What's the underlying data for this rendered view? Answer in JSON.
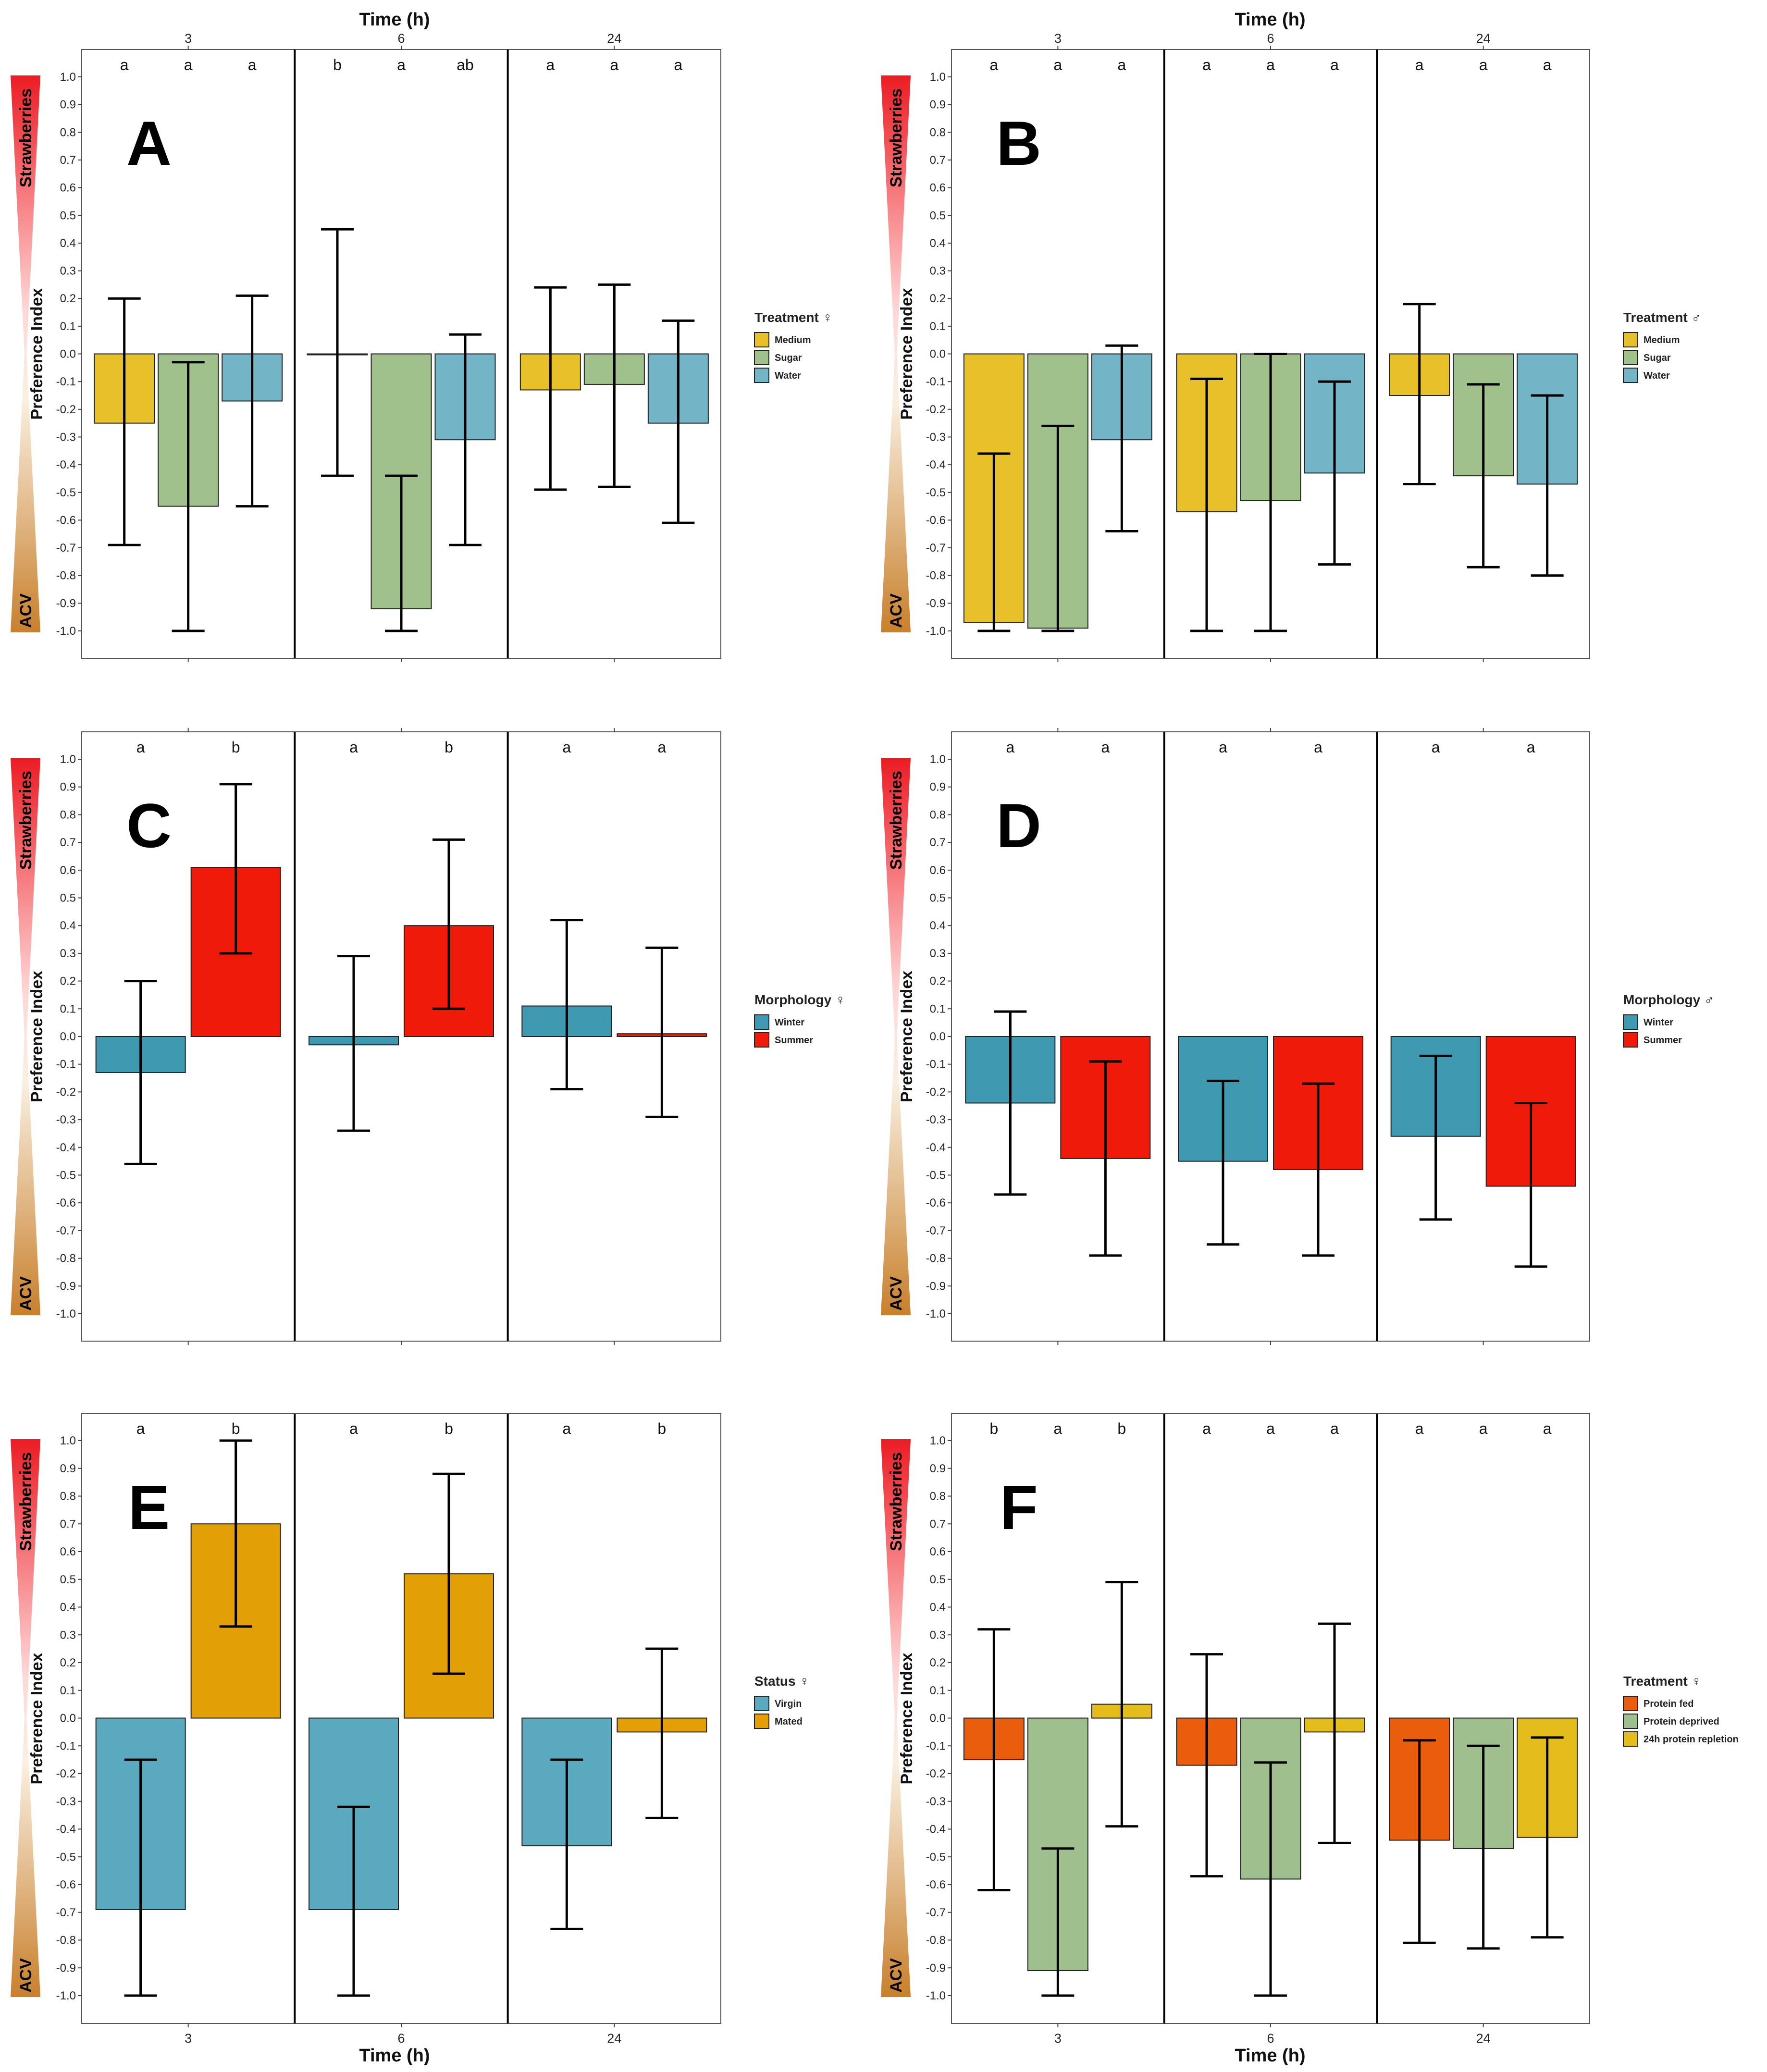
{
  "figure": {
    "time_axis_title": "Time (h)",
    "y_axis_title": "Preference Index",
    "gradient_top_label": "Strawberries",
    "gradient_bottom_label": "ACV",
    "y_ticks": [
      "1.0",
      "0.9",
      "0.8",
      "0.7",
      "0.6",
      "0.5",
      "0.4",
      "0.3",
      "0.2",
      "0.1",
      "0.0",
      "-0.1",
      "-0.2",
      "-0.3",
      "-0.4",
      "-0.5",
      "-0.6",
      "-0.7",
      "-0.8",
      "-0.9",
      "-1.0"
    ],
    "time_ticks": [
      "3",
      "6",
      "24"
    ]
  },
  "colors": {
    "gradient_top": "#ec1c24",
    "gradient_bottom": "#c8802c",
    "Medium": "#e8c12a",
    "Sugar": "#a0c08c",
    "Water": "#73b5c6",
    "Winter": "#3e99b1",
    "Summer": "#ef1a0a",
    "Virgin": "#5aa9be",
    "Mated": "#e3a006",
    "Protein fed": "#ea5d0c",
    "Protein deprived": "#9fc08e",
    "24h protein repletion": "#e4bd1d"
  },
  "chart_data": [
    {
      "panel": "A",
      "type": "bar",
      "ylim": [
        -1.0,
        1.0
      ],
      "xlabel": "Time (h)",
      "ylabel": "Preference Index",
      "categories": [
        "3",
        "6",
        "24"
      ],
      "legend": {
        "title": "Treatment ♀",
        "entries": [
          "Medium",
          "Sugar",
          "Water"
        ]
      },
      "series": [
        {
          "name": "Medium",
          "values": [
            -0.25,
            0.0,
            -0.13
          ],
          "err_low": [
            -0.69,
            -0.44,
            -0.49
          ],
          "err_high": [
            0.2,
            0.45,
            0.24
          ]
        },
        {
          "name": "Sugar",
          "values": [
            -0.55,
            -0.92,
            -0.11
          ],
          "err_low": [
            -1.0,
            -1.0,
            -0.48
          ],
          "err_high": [
            -0.03,
            -0.44,
            0.25
          ]
        },
        {
          "name": "Water",
          "values": [
            -0.17,
            -0.31,
            -0.25
          ],
          "err_low": [
            -0.55,
            -0.69,
            -0.61
          ],
          "err_high": [
            0.21,
            0.07,
            0.12
          ]
        }
      ],
      "letters": [
        [
          "a",
          "a",
          "a"
        ],
        [
          "b",
          "a",
          "ab"
        ],
        [
          "a",
          "a",
          "a"
        ]
      ]
    },
    {
      "panel": "B",
      "type": "bar",
      "ylim": [
        -1.0,
        1.0
      ],
      "xlabel": "Time (h)",
      "ylabel": "Preference Index",
      "categories": [
        "3",
        "6",
        "24"
      ],
      "legend": {
        "title": "Treatment ♂",
        "entries": [
          "Medium",
          "Sugar",
          "Water"
        ]
      },
      "series": [
        {
          "name": "Medium",
          "values": [
            -0.97,
            -0.57,
            -0.15
          ],
          "err_low": [
            -1.0,
            -1.0,
            -0.47
          ],
          "err_high": [
            -0.36,
            -0.09,
            0.18
          ]
        },
        {
          "name": "Sugar",
          "values": [
            -0.99,
            -0.53,
            -0.44
          ],
          "err_low": [
            -1.0,
            -1.0,
            -0.77
          ],
          "err_high": [
            -0.26,
            0.0,
            -0.11
          ]
        },
        {
          "name": "Water",
          "values": [
            -0.31,
            -0.43,
            -0.47
          ],
          "err_low": [
            -0.64,
            -0.76,
            -0.8
          ],
          "err_high": [
            0.03,
            -0.1,
            -0.15
          ]
        }
      ],
      "letters": [
        [
          "a",
          "a",
          "a"
        ],
        [
          "a",
          "a",
          "a"
        ],
        [
          "a",
          "a",
          "a"
        ]
      ]
    },
    {
      "panel": "C",
      "type": "bar",
      "ylim": [
        -1.0,
        1.0
      ],
      "xlabel": "Time (h)",
      "ylabel": "Preference Index",
      "categories": [
        "3",
        "6",
        "24"
      ],
      "legend": {
        "title": "Morphology ♀",
        "entries": [
          "Winter",
          "Summer"
        ]
      },
      "series": [
        {
          "name": "Winter",
          "values": [
            -0.13,
            -0.03,
            0.11
          ],
          "err_low": [
            -0.46,
            -0.34,
            -0.19
          ],
          "err_high": [
            0.2,
            0.29,
            0.42
          ]
        },
        {
          "name": "Summer",
          "values": [
            0.61,
            0.4,
            0.01
          ],
          "err_low": [
            0.3,
            0.1,
            -0.29
          ],
          "err_high": [
            0.91,
            0.71,
            0.32
          ]
        }
      ],
      "letters": [
        [
          "a",
          "b"
        ],
        [
          "a",
          "b"
        ],
        [
          "a",
          "a"
        ]
      ]
    },
    {
      "panel": "D",
      "type": "bar",
      "ylim": [
        -1.0,
        1.0
      ],
      "xlabel": "Time (h)",
      "ylabel": "Preference Index",
      "categories": [
        "3",
        "6",
        "24"
      ],
      "legend": {
        "title": "Morphology ♂",
        "entries": [
          "Winter",
          "Summer"
        ]
      },
      "series": [
        {
          "name": "Winter",
          "values": [
            -0.24,
            -0.45,
            -0.36
          ],
          "err_low": [
            -0.57,
            -0.75,
            -0.66
          ],
          "err_high": [
            0.09,
            -0.16,
            -0.07
          ]
        },
        {
          "name": "Summer",
          "values": [
            -0.44,
            -0.48,
            -0.54
          ],
          "err_low": [
            -0.79,
            -0.79,
            -0.83
          ],
          "err_high": [
            -0.09,
            -0.17,
            -0.24
          ]
        }
      ],
      "letters": [
        [
          "a",
          "a"
        ],
        [
          "a",
          "a"
        ],
        [
          "a",
          "a"
        ]
      ]
    },
    {
      "panel": "E",
      "type": "bar",
      "ylim": [
        -1.0,
        1.0
      ],
      "xlabel": "Time (h)",
      "ylabel": "Preference Index",
      "categories": [
        "3",
        "6",
        "24"
      ],
      "legend": {
        "title": "Status ♀",
        "entries": [
          "Virgin",
          "Mated"
        ]
      },
      "series": [
        {
          "name": "Virgin",
          "values": [
            -0.69,
            -0.69,
            -0.46
          ],
          "err_low": [
            -1.0,
            -1.0,
            -0.76
          ],
          "err_high": [
            -0.15,
            -0.32,
            -0.15
          ]
        },
        {
          "name": "Mated",
          "values": [
            0.7,
            0.52,
            -0.05
          ],
          "err_low": [
            0.33,
            0.16,
            -0.36
          ],
          "err_high": [
            1.0,
            0.88,
            0.25
          ]
        }
      ],
      "letters": [
        [
          "a",
          "b"
        ],
        [
          "a",
          "b"
        ],
        [
          "a",
          "b"
        ]
      ]
    },
    {
      "panel": "F",
      "type": "bar",
      "ylim": [
        -1.0,
        1.0
      ],
      "xlabel": "Time (h)",
      "ylabel": "Preference Index",
      "categories": [
        "3",
        "6",
        "24"
      ],
      "legend": {
        "title": "Treatment ♀",
        "entries": [
          "Protein fed",
          "Protein deprived",
          "24h protein repletion"
        ]
      },
      "series": [
        {
          "name": "Protein fed",
          "values": [
            -0.15,
            -0.17,
            -0.44
          ],
          "err_low": [
            -0.62,
            -0.57,
            -0.81
          ],
          "err_high": [
            0.32,
            0.23,
            -0.08
          ]
        },
        {
          "name": "Protein deprived",
          "values": [
            -0.91,
            -0.58,
            -0.47
          ],
          "err_low": [
            -1.0,
            -1.0,
            -0.83
          ],
          "err_high": [
            -0.47,
            -0.16,
            -0.1
          ]
        },
        {
          "name": "24h protein repletion",
          "values": [
            0.05,
            -0.05,
            -0.43
          ],
          "err_low": [
            -0.39,
            -0.45,
            -0.79
          ],
          "err_high": [
            0.49,
            0.34,
            -0.07
          ]
        }
      ],
      "letters": [
        [
          "b",
          "a",
          "b"
        ],
        [
          "a",
          "a",
          "a"
        ],
        [
          "a",
          "a",
          "a"
        ]
      ]
    }
  ]
}
